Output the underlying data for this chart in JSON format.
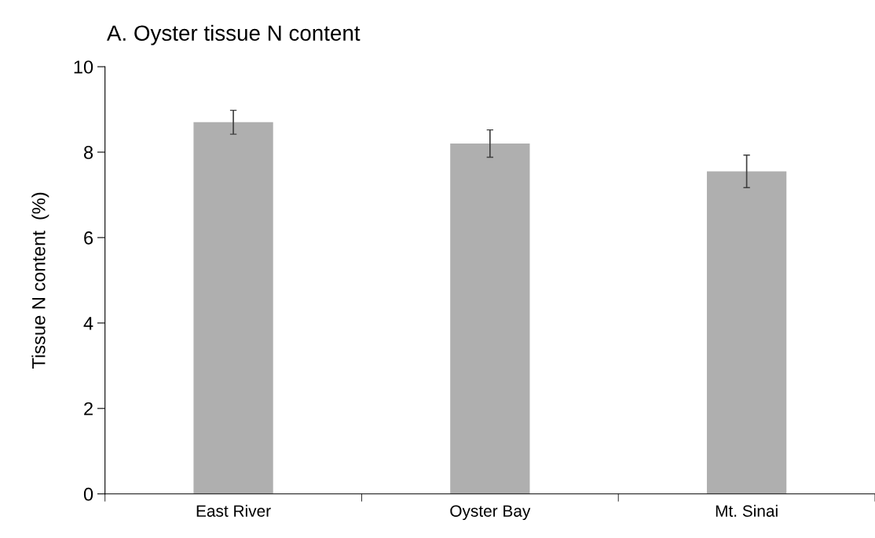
{
  "chart_data": {
    "type": "bar",
    "title": "A. Oyster tissue N content",
    "ylabel": "Tissue N content  (%)",
    "categories": [
      "East River",
      "Oyster Bay",
      "Mt. Sinai"
    ],
    "values": [
      8.7,
      8.2,
      7.55
    ],
    "errors": [
      0.28,
      0.32,
      0.38
    ],
    "color": "#afafaf",
    "ylim": [
      0,
      10
    ],
    "yticks": [
      0,
      2,
      4,
      6,
      8,
      10
    ],
    "grid": false,
    "legend": false
  }
}
